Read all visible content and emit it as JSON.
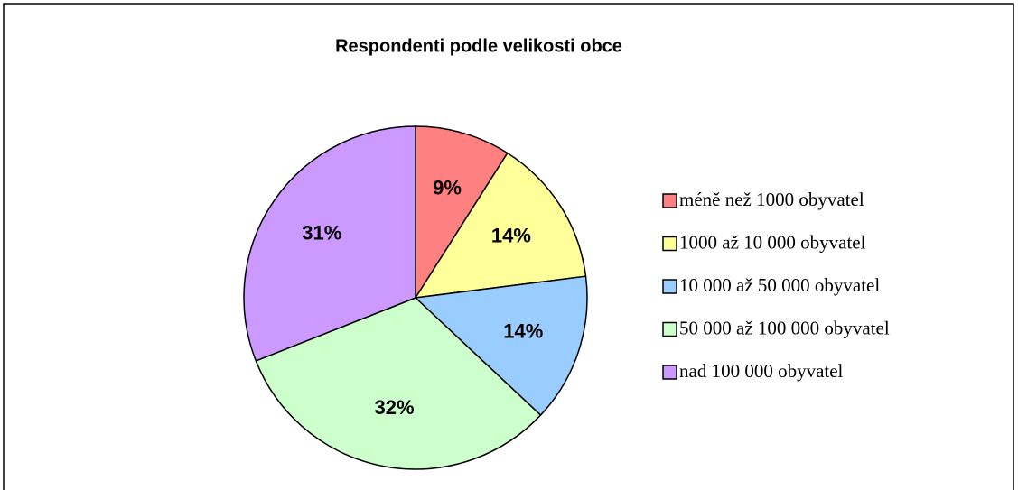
{
  "chart_data": {
    "type": "pie",
    "title": "Respondenti podle velikosti obce",
    "categories": [
      "méně než 1000 obyvatel",
      "1000 až 10 000 obyvatel",
      "10 000 až 50 000 obyvatel",
      "50 000 až 100 000 obyvatel",
      "nad 100 000 obyvatel"
    ],
    "values": [
      9,
      14,
      14,
      32,
      31
    ],
    "value_labels": [
      "9%",
      "14%",
      "14%",
      "32%",
      "31%"
    ],
    "colors": [
      "#ff8080",
      "#ffff99",
      "#99ccff",
      "#ccffcc",
      "#cc99ff"
    ],
    "legend": "right"
  }
}
